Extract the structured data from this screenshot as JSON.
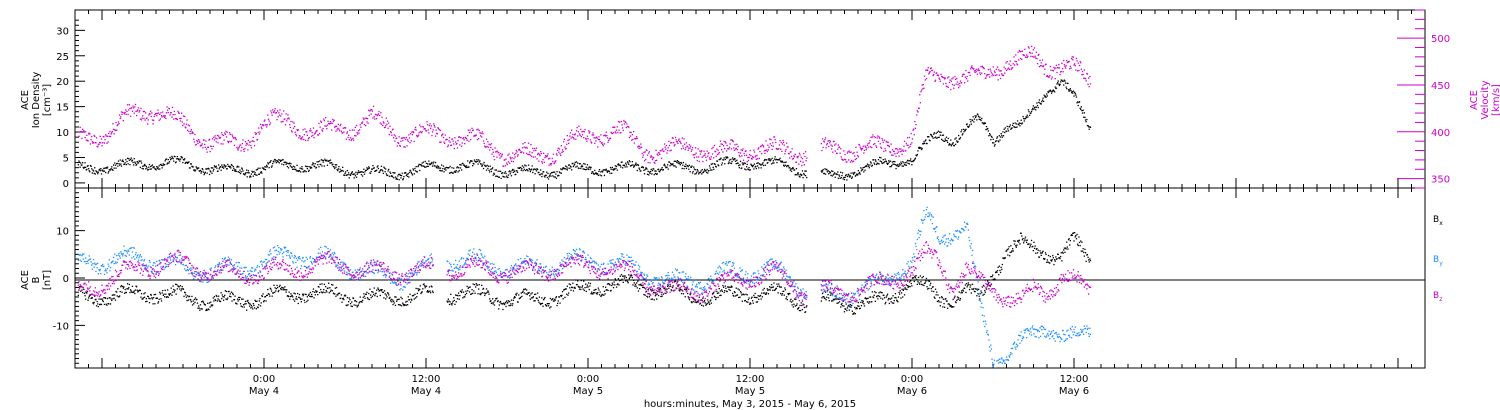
{
  "colors": {
    "black": "#000000",
    "magenta": "#cc00cc",
    "blue": "#1e90ff",
    "axis": "#000000"
  },
  "x_axis": {
    "range_hours": [
      -14,
      86
    ],
    "ticks": [
      {
        "h": 0,
        "time": "0:00",
        "date": "May 4"
      },
      {
        "h": 12,
        "time": "12:00",
        "date": "May 4"
      },
      {
        "h": 24,
        "time": "0:00",
        "date": "May 5"
      },
      {
        "h": 36,
        "time": "12:00",
        "date": "May 5"
      },
      {
        "h": 48,
        "time": "0:00",
        "date": "May 6"
      },
      {
        "h": 60,
        "time": "12:00",
        "date": "May 6"
      }
    ],
    "xlabel": "hours:minutes, May  3, 2015 - May  6, 2015"
  },
  "chart_data": [
    {
      "type": "scatter",
      "panel": "top",
      "ylabel_left": [
        "ACE",
        "Ion Density",
        "[cm⁻³]"
      ],
      "ylabel_right": [
        "ACE",
        "Velocity",
        "[km/s]"
      ],
      "ylim_left": [
        -1,
        34
      ],
      "yticks_left": [
        0,
        5,
        10,
        15,
        20,
        25,
        30
      ],
      "ylim_right": [
        340,
        530
      ],
      "yticks_right": [
        350,
        400,
        450,
        500
      ],
      "series": [
        {
          "axis": "left",
          "color": "black",
          "x_hours": [
            -14,
            -10,
            -6,
            -2,
            2,
            6,
            10,
            14,
            18,
            22,
            26,
            30,
            34,
            38,
            42,
            46,
            48,
            49,
            50,
            51,
            52,
            53,
            54,
            55,
            56,
            57,
            58,
            59,
            60,
            61
          ],
          "y": [
            3.5,
            3.2,
            3.8,
            3.0,
            3.2,
            2.8,
            2.5,
            3.0,
            2.6,
            2.8,
            2.3,
            3.5,
            3.8,
            3.2,
            2.0,
            4.0,
            4.0,
            7.0,
            9.5,
            8.5,
            11.0,
            13.0,
            9.0,
            12.0,
            11.5,
            14.5,
            18.0,
            20.0,
            16.0,
            11.0
          ]
        },
        {
          "axis": "right",
          "color": "magenta",
          "x_hours": [
            -14,
            -12,
            -10,
            -8,
            -6,
            -4,
            -2,
            0,
            2,
            4,
            6,
            8,
            10,
            12,
            14,
            16,
            18,
            20,
            22,
            24,
            26,
            28,
            30,
            32,
            34,
            36,
            38,
            40,
            42,
            44,
            46,
            48,
            49,
            50,
            51,
            52,
            53,
            54,
            55,
            56,
            57,
            58,
            59,
            60,
            61
          ],
          "y": [
            395,
            400,
            412,
            420,
            405,
            395,
            390,
            410,
            405,
            395,
            405,
            420,
            402,
            395,
            390,
            385,
            380,
            380,
            388,
            392,
            398,
            380,
            385,
            390,
            378,
            378,
            375,
            380,
            385,
            390,
            380,
            390,
            450,
            455,
            460,
            458,
            462,
            475,
            480,
            478,
            482,
            470,
            465,
            460,
            452
          ]
        }
      ]
    },
    {
      "type": "scatter",
      "panel": "bottom",
      "ylabel_left": [
        "ACE",
        "B",
        "[nT]"
      ],
      "ylim": [
        -19,
        19
      ],
      "yticks": [
        -10,
        0,
        10
      ],
      "legend": [
        "Bx",
        "By",
        "Bz"
      ],
      "gaps_hours": [
        [
          12.5,
          13.5
        ],
        [
          40.2,
          41.2
        ]
      ],
      "series": [
        {
          "name": "Bx",
          "color": "black",
          "x_hours": [
            -14,
            -10,
            -6,
            -2,
            2,
            6,
            10,
            14,
            18,
            22,
            26,
            30,
            34,
            38,
            40,
            42,
            46,
            48,
            49,
            50,
            51,
            52,
            53,
            54,
            55,
            56,
            57,
            58,
            59,
            60,
            61
          ],
          "y": [
            -3,
            -4,
            -4,
            -4,
            -4,
            -3.5,
            -3,
            -4,
            -4,
            -3,
            -2,
            -2,
            -3.5,
            -4,
            -5,
            -4,
            -5,
            -1,
            -3,
            -5,
            -4,
            -2,
            -4,
            2,
            7,
            8,
            6,
            5,
            4,
            7,
            3
          ]
        },
        {
          "name": "By",
          "color": "blue",
          "x_hours": [
            -14,
            -10,
            -6,
            -2,
            2,
            6,
            10,
            14,
            18,
            22,
            26,
            30,
            34,
            38,
            40,
            42,
            46,
            48,
            49,
            50,
            51,
            52,
            53,
            54,
            55,
            56,
            57,
            58,
            59,
            60,
            61
          ],
          "y": [
            4.5,
            3.5,
            2,
            3,
            4,
            3,
            1,
            3,
            2.5,
            4,
            2,
            0,
            1,
            0.5,
            -2,
            -2.5,
            -1,
            3,
            12,
            8,
            10,
            11,
            -5,
            -16,
            -15,
            -13,
            -12,
            -10,
            -13,
            -14,
            -12
          ]
        },
        {
          "name": "Bz",
          "color": "magenta",
          "x_hours": [
            -14,
            -10,
            -6,
            -2,
            2,
            6,
            10,
            14,
            18,
            22,
            26,
            30,
            34,
            38,
            40,
            42,
            46,
            48,
            49,
            50,
            51,
            52,
            53,
            54,
            55,
            56,
            57,
            58,
            59,
            60,
            61
          ],
          "y": [
            -2,
            1,
            3,
            2,
            1,
            3,
            2,
            1,
            2,
            3,
            1,
            -2,
            -1,
            0,
            -3,
            -2,
            -1,
            1,
            4,
            3,
            -2,
            2,
            0,
            -1,
            -3,
            -5,
            -2,
            -3,
            -1,
            -2,
            -3
          ]
        }
      ]
    }
  ],
  "labels": {
    "top_left": [
      "ACE",
      "Ion Density",
      "[cm⁻³]"
    ],
    "top_right": [
      "ACE",
      "Velocity",
      "[km/s]"
    ],
    "bottom_left": [
      "ACE",
      "B",
      "[nT]"
    ],
    "legend_bx": "B",
    "legend_bx_sub": "x",
    "legend_by": "B",
    "legend_by_sub": "y",
    "legend_bz": "B",
    "legend_bz_sub": "z"
  }
}
